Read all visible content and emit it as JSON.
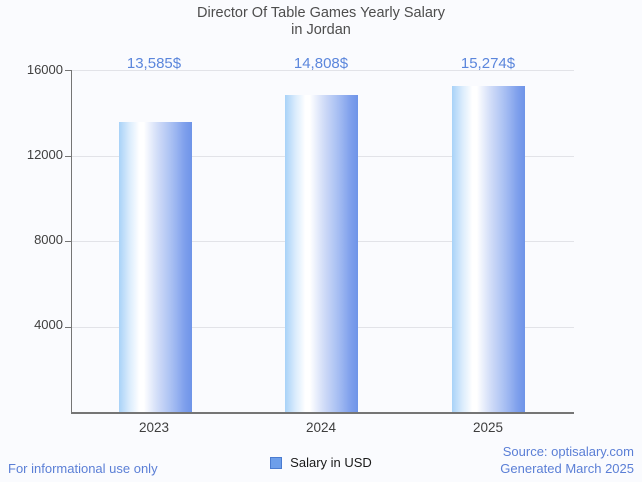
{
  "chart_data": {
    "type": "bar",
    "title_line1": "Director Of Table Games Yearly Salary",
    "title_line2": "in Jordan",
    "categories": [
      "2023",
      "2024",
      "2025"
    ],
    "values": [
      13585,
      14808,
      15274
    ],
    "value_labels": [
      "13,585$",
      "14,808$",
      "15,274$"
    ],
    "ylim": [
      0,
      16000
    ],
    "yticks": [
      16000,
      12000,
      8000,
      4000
    ],
    "ytick_labels": [
      "16000",
      "12000",
      "8000",
      "4000"
    ],
    "grid": "horizontal gridlines on",
    "legend_position": "bottom-center",
    "legend": {
      "label": "Salary in USD",
      "swatch_color": "#6d9eea",
      "swatch_border": "#4a7bd0"
    },
    "colors": {
      "background": "#fafbfe",
      "bar_gradient_left": "#a8d2f8",
      "bar_gradient_highlight": "#ffffff",
      "bar_gradient_right": "#6e94e8",
      "value_label": "#5b86dc",
      "title": "#4d4d4d",
      "axis": "#757575",
      "gridline": "#e2e3e8",
      "footer_link": "#5b7fd6"
    }
  },
  "footer": {
    "left_note": "For informational use only",
    "source_line1": "Source: optisalary.com",
    "source_line2": "Generated March 2025"
  }
}
